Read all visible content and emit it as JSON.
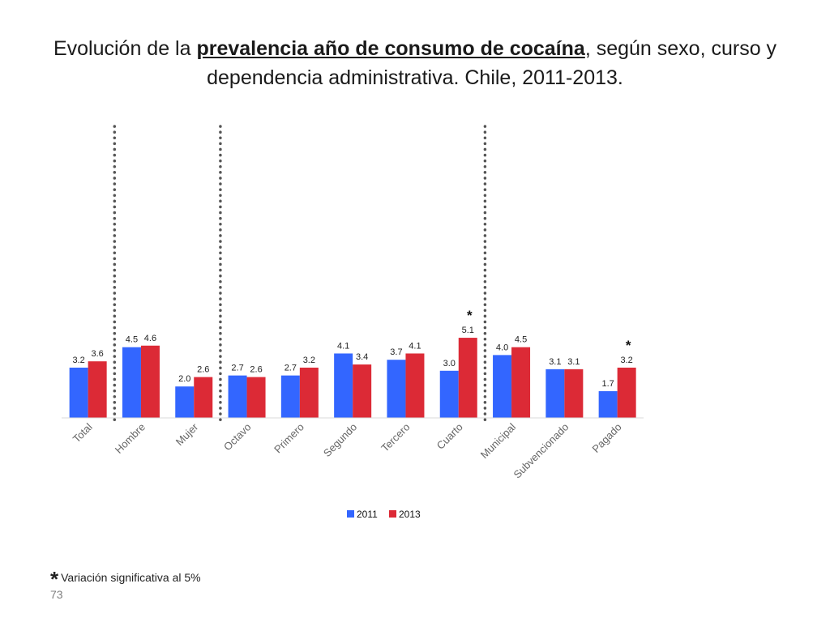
{
  "slide": {
    "title_prefix": "Evolución de la ",
    "title_underlined": "prevalencia año de consumo de cocaína",
    "title_suffix": ", según sexo, curso y dependencia administrativa. Chile, 2011-2013.",
    "footnote_star": "*",
    "footnote_text": "Variación significativa al 5%",
    "page_number": "73"
  },
  "colors": {
    "series_2011": "#3366ff",
    "series_2013": "#dc2a36"
  },
  "chart_data": {
    "type": "bar",
    "title": "Evolución de la prevalencia año de consumo de cocaína, según sexo, curso y dependencia administrativa. Chile, 2011-2013.",
    "xlabel": "",
    "ylabel": "",
    "ylim": [
      0,
      9
    ],
    "categories": [
      "Total",
      "Hombre",
      "Mujer",
      "Octavo",
      "Primero",
      "Segundo",
      "Tercero",
      "Cuarto",
      "Municipal",
      "Subvencionado",
      "Pagado"
    ],
    "series": [
      {
        "name": "2011",
        "values": [
          3.2,
          4.5,
          2.0,
          2.7,
          2.7,
          4.1,
          3.7,
          3.0,
          4.0,
          3.1,
          1.7
        ],
        "labels": [
          "3.2",
          "4.5",
          "2.0",
          "2.7",
          "2.7",
          "4.1",
          "3.7",
          "3.0",
          "4.0",
          "3.1",
          "1.7"
        ]
      },
      {
        "name": "2013",
        "values": [
          3.6,
          4.6,
          2.6,
          2.6,
          3.2,
          3.4,
          4.1,
          5.1,
          4.5,
          3.1,
          3.2
        ],
        "labels": [
          "3.6",
          "4.6",
          "2.6",
          "2.6",
          "3.2",
          "3.4",
          "4.1",
          "5.1",
          "4.5",
          "3.1",
          "3.2"
        ]
      }
    ],
    "significant": [
      {
        "category": "Cuarto",
        "mark": "*"
      },
      {
        "category": "Pagado",
        "mark": "*"
      }
    ],
    "group_separators_after": [
      "Total",
      "Mujer",
      "Cuarto"
    ],
    "legend": [
      "2011",
      "2013"
    ],
    "legend_position": "bottom",
    "grid": false
  }
}
